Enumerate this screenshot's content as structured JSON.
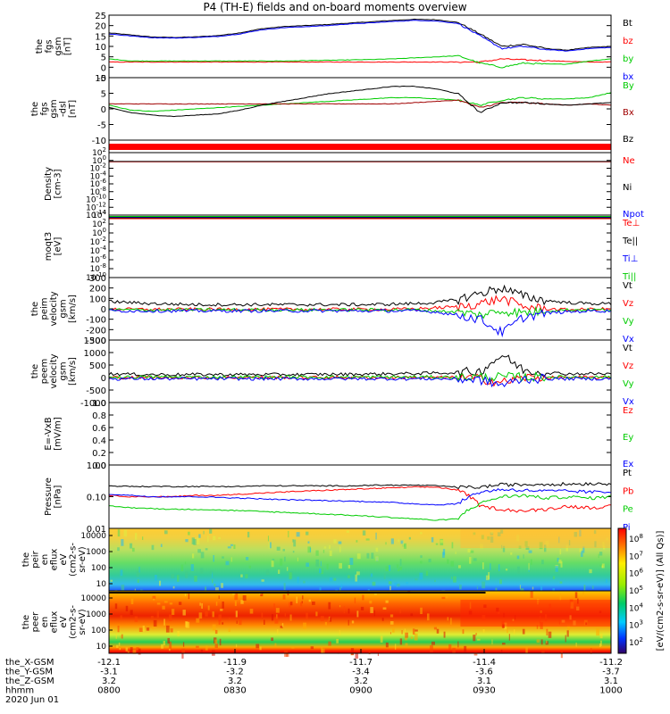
{
  "title": "P4 (TH-E) fields and on-board moments overview",
  "date_label": "2020 Jun 01",
  "colorbar_label": "[eV/(cm2-s-sr-eV)] (All Qs)]",
  "colorbar_ticks": [
    "10^8",
    "10^7",
    "10^6",
    "10^5",
    "10^4",
    "10^3",
    "10^2"
  ],
  "chart_data": [
    {
      "panel": 1,
      "type": "line",
      "ylabel": [
        "the",
        "fgs",
        "gsm",
        "[nT]"
      ],
      "ylim": [
        -5,
        25
      ],
      "yticks": [
        "25",
        "20",
        "15",
        "10",
        "5",
        "0",
        "-5"
      ],
      "series": [
        {
          "name": "Bt",
          "color": "#000000",
          "y": [
            16.5,
            15.5,
            14.5,
            14.3,
            14.6,
            15.2,
            16.5,
            18.5,
            19.5,
            20,
            20.5,
            21.2,
            21.8,
            22.5,
            23,
            22.8,
            21.5,
            16,
            10,
            11,
            9,
            8.2,
            9.5,
            10
          ]
        },
        {
          "name": "bz",
          "color": "#ff0000",
          "y": [
            2.5,
            2.5,
            2.5,
            2.5,
            2.5,
            2.5,
            2.5,
            2.5,
            2.5,
            2.5,
            2.5,
            2.5,
            2.5,
            2.5,
            2.5,
            2.5,
            2.5,
            2.5,
            4,
            3.5,
            3.2,
            2.8,
            2.5,
            2.5
          ]
        },
        {
          "name": "by",
          "color": "#00cc00",
          "y": [
            4,
            3,
            3,
            3,
            3,
            3,
            3,
            3,
            3,
            3.2,
            3.3,
            3.5,
            3.7,
            4,
            4.5,
            5,
            5.5,
            2,
            0,
            2,
            1.5,
            1.5,
            3,
            4
          ]
        },
        {
          "name": "bx",
          "color": "#0000ff",
          "y": [
            16,
            15,
            14.2,
            14,
            14.3,
            14.8,
            16,
            18,
            19,
            19.5,
            20,
            20.8,
            21.3,
            22,
            22.5,
            22.2,
            21,
            15,
            9,
            10,
            8.5,
            7.8,
            9,
            9.5
          ]
        }
      ]
    },
    {
      "panel": 2,
      "type": "line",
      "ylabel": [
        "the",
        "fgs",
        "gsm",
        "-dsl",
        "[nT]"
      ],
      "ylim": [
        -15,
        10
      ],
      "yticks": [
        "10",
        "5",
        "0",
        "-5",
        "-10"
      ],
      "series": [
        {
          "name": "By",
          "color": "#00cc00",
          "y": [
            -1,
            -3,
            -3.5,
            -3,
            -2.5,
            -2,
            -1.5,
            -1,
            -0.5,
            0,
            0.5,
            1,
            1.5,
            2,
            2,
            1.5,
            1,
            -1,
            1,
            2,
            1.5,
            1.5,
            2,
            4
          ]
        },
        {
          "name": "Bx",
          "color": "#a00000",
          "y": [
            -0.5,
            -0.5,
            -0.5,
            -0.5,
            -0.5,
            -0.5,
            -0.5,
            -0.5,
            -0.5,
            -0.5,
            -0.5,
            -0.5,
            -0.5,
            -0.5,
            0,
            0.5,
            1,
            -2,
            0,
            0,
            -0.5,
            -1,
            -0.5,
            -1
          ]
        },
        {
          "name": "Bz",
          "color": "#000000",
          "y": [
            -2,
            -4,
            -5,
            -5.5,
            -5,
            -4.5,
            -3,
            -1,
            0.5,
            2,
            3.5,
            4.5,
            5.5,
            6.5,
            6.5,
            5.5,
            3.5,
            -4,
            0,
            0,
            -0.5,
            -1,
            -0.5,
            0
          ]
        }
      ]
    },
    {
      "panel": 3,
      "type": "line",
      "ylabel": [
        "Density",
        "[cm-3]"
      ],
      "ylim": [
        -14,
        3
      ],
      "log": true,
      "yticks": [
        "10^2",
        "10^0",
        "10^-2",
        "10^-4",
        "10^-6",
        "10^-8",
        "10^-10",
        "10^-12",
        "10^-14"
      ],
      "series": [
        {
          "name": "Ne",
          "color": "#ff0000",
          "y": [
            0.5,
            0.5,
            0.5,
            0.5,
            0.5,
            0.5,
            0.5,
            0.5,
            0.5,
            0.5,
            0.5,
            0.5,
            0.5,
            0.5,
            0.5,
            0.5,
            0.5,
            0.5,
            0.5,
            0.5,
            0.5,
            0.5,
            0.5,
            0.5
          ]
        },
        {
          "name": "Ni",
          "color": "#000000",
          "y": [
            0.6,
            0.6,
            0.6,
            0.6,
            0.6,
            0.6,
            0.6,
            0.6,
            0.6,
            0.6,
            0.6,
            0.6,
            0.6,
            0.6,
            0.6,
            0.6,
            0.6,
            0.6,
            0.6,
            0.6,
            0.6,
            0.6,
            0.6,
            0.6
          ]
        },
        {
          "name": "Npot",
          "color": "#0000ff",
          "y": []
        }
      ]
    },
    {
      "panel": 4,
      "type": "line",
      "ylabel": [
        "moqt3",
        "[eV]"
      ],
      "ylim": [
        -10,
        4
      ],
      "log": true,
      "yticks": [
        "10^4",
        "10^2",
        "10^0",
        "10^-2",
        "10^-4",
        "10^-6",
        "10^-8",
        "10^-10"
      ],
      "series": [
        {
          "name": "Te⊥",
          "color": "#ff0000",
          "y": [
            3.2,
            3.2,
            3.2,
            3.2,
            3.2,
            3.2,
            3.2,
            3.2,
            3.2,
            3.2,
            3.2,
            3.2,
            3.2,
            3.2,
            3.2,
            3.2,
            3.2,
            3.2,
            3.2,
            3.2,
            3.2,
            3.2,
            3.2,
            3.2
          ]
        },
        {
          "name": "Te||",
          "color": "#000000",
          "y": [
            3.4,
            3.4,
            3.4,
            3.4,
            3.4,
            3.4,
            3.4,
            3.4,
            3.4,
            3.4,
            3.4,
            3.4,
            3.4,
            3.4,
            3.4,
            3.4,
            3.4,
            3.4,
            3.4,
            3.4,
            3.4,
            3.4,
            3.4,
            3.4
          ]
        },
        {
          "name": "Ti⊥",
          "color": "#0000ff",
          "y": [
            3.6,
            3.6,
            3.6,
            3.6,
            3.6,
            3.6,
            3.6,
            3.6,
            3.6,
            3.6,
            3.6,
            3.6,
            3.6,
            3.6,
            3.6,
            3.6,
            3.6,
            3.6,
            3.6,
            3.6,
            3.6,
            3.6,
            3.6,
            3.6
          ]
        },
        {
          "name": "Ti||",
          "color": "#00cc00",
          "y": [
            3.7,
            3.7,
            3.7,
            3.7,
            3.7,
            3.7,
            3.7,
            3.7,
            3.7,
            3.7,
            3.7,
            3.7,
            3.7,
            3.7,
            3.7,
            3.7,
            3.7,
            3.7,
            3.7,
            3.7,
            3.7,
            3.7,
            3.7,
            3.7
          ]
        }
      ]
    },
    {
      "panel": 5,
      "type": "line",
      "ylabel": [
        "the",
        "peim",
        "velocity",
        "gsm",
        "[km/s]"
      ],
      "ylim": [
        -300,
        300
      ],
      "yticks": [
        "300",
        "200",
        "100",
        "0",
        "-100",
        "-200",
        "-300"
      ],
      "series": [
        {
          "name": "Vt",
          "color": "#000000",
          "y": [
            70,
            60,
            50,
            45,
            40,
            40,
            40,
            40,
            40,
            40,
            40,
            40,
            40,
            45,
            50,
            60,
            90,
            150,
            200,
            120,
            80,
            60,
            50,
            50
          ]
        },
        {
          "name": "Vz",
          "color": "#ff0000",
          "y": [
            0,
            -5,
            -5,
            -5,
            -5,
            -5,
            -5,
            -5,
            -5,
            -5,
            -5,
            -5,
            -5,
            -5,
            0,
            10,
            20,
            50,
            100,
            20,
            0,
            -10,
            -5,
            0
          ]
        },
        {
          "name": "Vy",
          "color": "#00cc00",
          "y": [
            -10,
            -10,
            -10,
            -10,
            -10,
            -10,
            -10,
            -10,
            -10,
            -10,
            -10,
            -10,
            -10,
            -10,
            -10,
            -20,
            -30,
            -60,
            -20,
            -40,
            -20,
            -10,
            -10,
            -10
          ]
        },
        {
          "name": "Vx",
          "color": "#0000ff",
          "y": [
            -20,
            -20,
            -20,
            -20,
            -20,
            -20,
            -20,
            -20,
            -20,
            -20,
            -20,
            -20,
            -20,
            -20,
            -20,
            -30,
            -60,
            -100,
            -230,
            -80,
            -40,
            -30,
            -20,
            -20
          ]
        }
      ]
    },
    {
      "panel": 6,
      "type": "line",
      "ylabel": [
        "the",
        "peem",
        "velocity",
        "gsm",
        "[km/s]"
      ],
      "ylim": [
        -1000,
        1500
      ],
      "yticks": [
        "1500",
        "1000",
        "500",
        "0",
        "-500",
        "-1000"
      ],
      "series": [
        {
          "name": "Vt",
          "color": "#000000",
          "y": [
            150,
            130,
            120,
            120,
            120,
            120,
            120,
            120,
            120,
            120,
            130,
            130,
            140,
            150,
            160,
            180,
            200,
            250,
            900,
            300,
            200,
            150,
            150,
            150
          ]
        },
        {
          "name": "Vz",
          "color": "#ff0000",
          "y": [
            0,
            0,
            0,
            0,
            0,
            0,
            0,
            0,
            0,
            0,
            0,
            0,
            0,
            0,
            0,
            0,
            0,
            -50,
            -200,
            0,
            0,
            0,
            0,
            0
          ]
        },
        {
          "name": "Vy",
          "color": "#00cc00",
          "y": [
            20,
            20,
            20,
            20,
            20,
            20,
            20,
            20,
            20,
            20,
            20,
            20,
            20,
            20,
            20,
            20,
            20,
            20,
            20,
            20,
            20,
            20,
            20,
            20
          ]
        },
        {
          "name": "Vx",
          "color": "#0000ff",
          "y": [
            -50,
            -50,
            -50,
            -50,
            -50,
            -50,
            -50,
            -50,
            -50,
            -50,
            -50,
            -50,
            -50,
            -50,
            -50,
            -50,
            -60,
            -100,
            -300,
            -60,
            -50,
            -50,
            -50,
            -50
          ]
        }
      ]
    },
    {
      "panel": 7,
      "type": "line",
      "ylabel": [
        "E=-VxB",
        "[mV/m]"
      ],
      "ylim": [
        0.0,
        1.0
      ],
      "yticks": [
        "1.0",
        "0.8",
        "0.6",
        "0.4",
        "0.2",
        "0.0"
      ],
      "series": [
        {
          "name": "Ez",
          "color": "#ff0000",
          "y": []
        },
        {
          "name": "Ey",
          "color": "#00cc00",
          "y": []
        },
        {
          "name": "Ex",
          "color": "#0000ff",
          "y": []
        }
      ]
    },
    {
      "panel": 8,
      "type": "line",
      "ylabel": [
        "Pressure",
        "[nPa]"
      ],
      "ylim": [
        0.01,
        1.0
      ],
      "log": true,
      "yticks": [
        "1.00",
        "0.10",
        "0.01"
      ],
      "series": [
        {
          "name": "Pt",
          "color": "#000000",
          "y": [
            0.22,
            0.21,
            0.21,
            0.21,
            0.21,
            0.21,
            0.21,
            0.22,
            0.22,
            0.22,
            0.22,
            0.22,
            0.23,
            0.23,
            0.23,
            0.22,
            0.2,
            0.2,
            0.24,
            0.24,
            0.25,
            0.25,
            0.26,
            0.26
          ]
        },
        {
          "name": "Pb",
          "color": "#ff0000",
          "y": [
            0.11,
            0.1,
            0.1,
            0.1,
            0.11,
            0.11,
            0.12,
            0.13,
            0.14,
            0.15,
            0.16,
            0.17,
            0.18,
            0.19,
            0.2,
            0.2,
            0.16,
            0.05,
            0.04,
            0.035,
            0.04,
            0.05,
            0.045,
            0.05
          ]
        },
        {
          "name": "Pe",
          "color": "#00cc00",
          "y": [
            0.05,
            0.045,
            0.042,
            0.04,
            0.04,
            0.038,
            0.036,
            0.034,
            0.032,
            0.03,
            0.028,
            0.026,
            0.024,
            0.022,
            0.02,
            0.018,
            0.02,
            0.06,
            0.1,
            0.11,
            0.09,
            0.1,
            0.09,
            0.1
          ]
        },
        {
          "name": "Pi",
          "color": "#0000ff",
          "y": [
            0.12,
            0.11,
            0.1,
            0.1,
            0.1,
            0.095,
            0.09,
            0.085,
            0.08,
            0.078,
            0.075,
            0.072,
            0.07,
            0.065,
            0.06,
            0.055,
            0.06,
            0.14,
            0.17,
            0.16,
            0.15,
            0.15,
            0.14,
            0.14
          ]
        }
      ]
    },
    {
      "panel": 9,
      "type": "heatmap",
      "ylabel": [
        "the",
        "peir",
        "en",
        "eflux",
        "eV",
        "(cm2-s-",
        "sr-eV)"
      ],
      "yticks": [
        "10000",
        "1000",
        "100",
        "10"
      ]
    },
    {
      "panel": 10,
      "type": "heatmap",
      "ylabel": [
        "the",
        "peer",
        "en",
        "eflux",
        "eV",
        "(cm2-s-",
        "sr-eV)"
      ],
      "yticks": [
        "10000",
        "1000",
        "100",
        "10"
      ]
    }
  ],
  "x_axis": {
    "row_labels": [
      "the_X-GSM",
      "the_Y-GSM",
      "the_Z-GSM",
      "hhmm"
    ],
    "ticks": [
      {
        "x_gsm": "-12.1",
        "y_gsm": "-3.1",
        "z_gsm": "3.2",
        "hhmm": "0800"
      },
      {
        "x_gsm": "-11.9",
        "y_gsm": "-3.2",
        "z_gsm": "3.2",
        "hhmm": "0830"
      },
      {
        "x_gsm": "-11.7",
        "y_gsm": "-3.4",
        "z_gsm": "3.2",
        "hhmm": "0900"
      },
      {
        "x_gsm": "-11.4",
        "y_gsm": "-3.6",
        "z_gsm": "3.1",
        "hhmm": "0930"
      },
      {
        "x_gsm": "-11.2",
        "y_gsm": "-3.7",
        "z_gsm": "3.1",
        "hhmm": "1000"
      }
    ]
  }
}
